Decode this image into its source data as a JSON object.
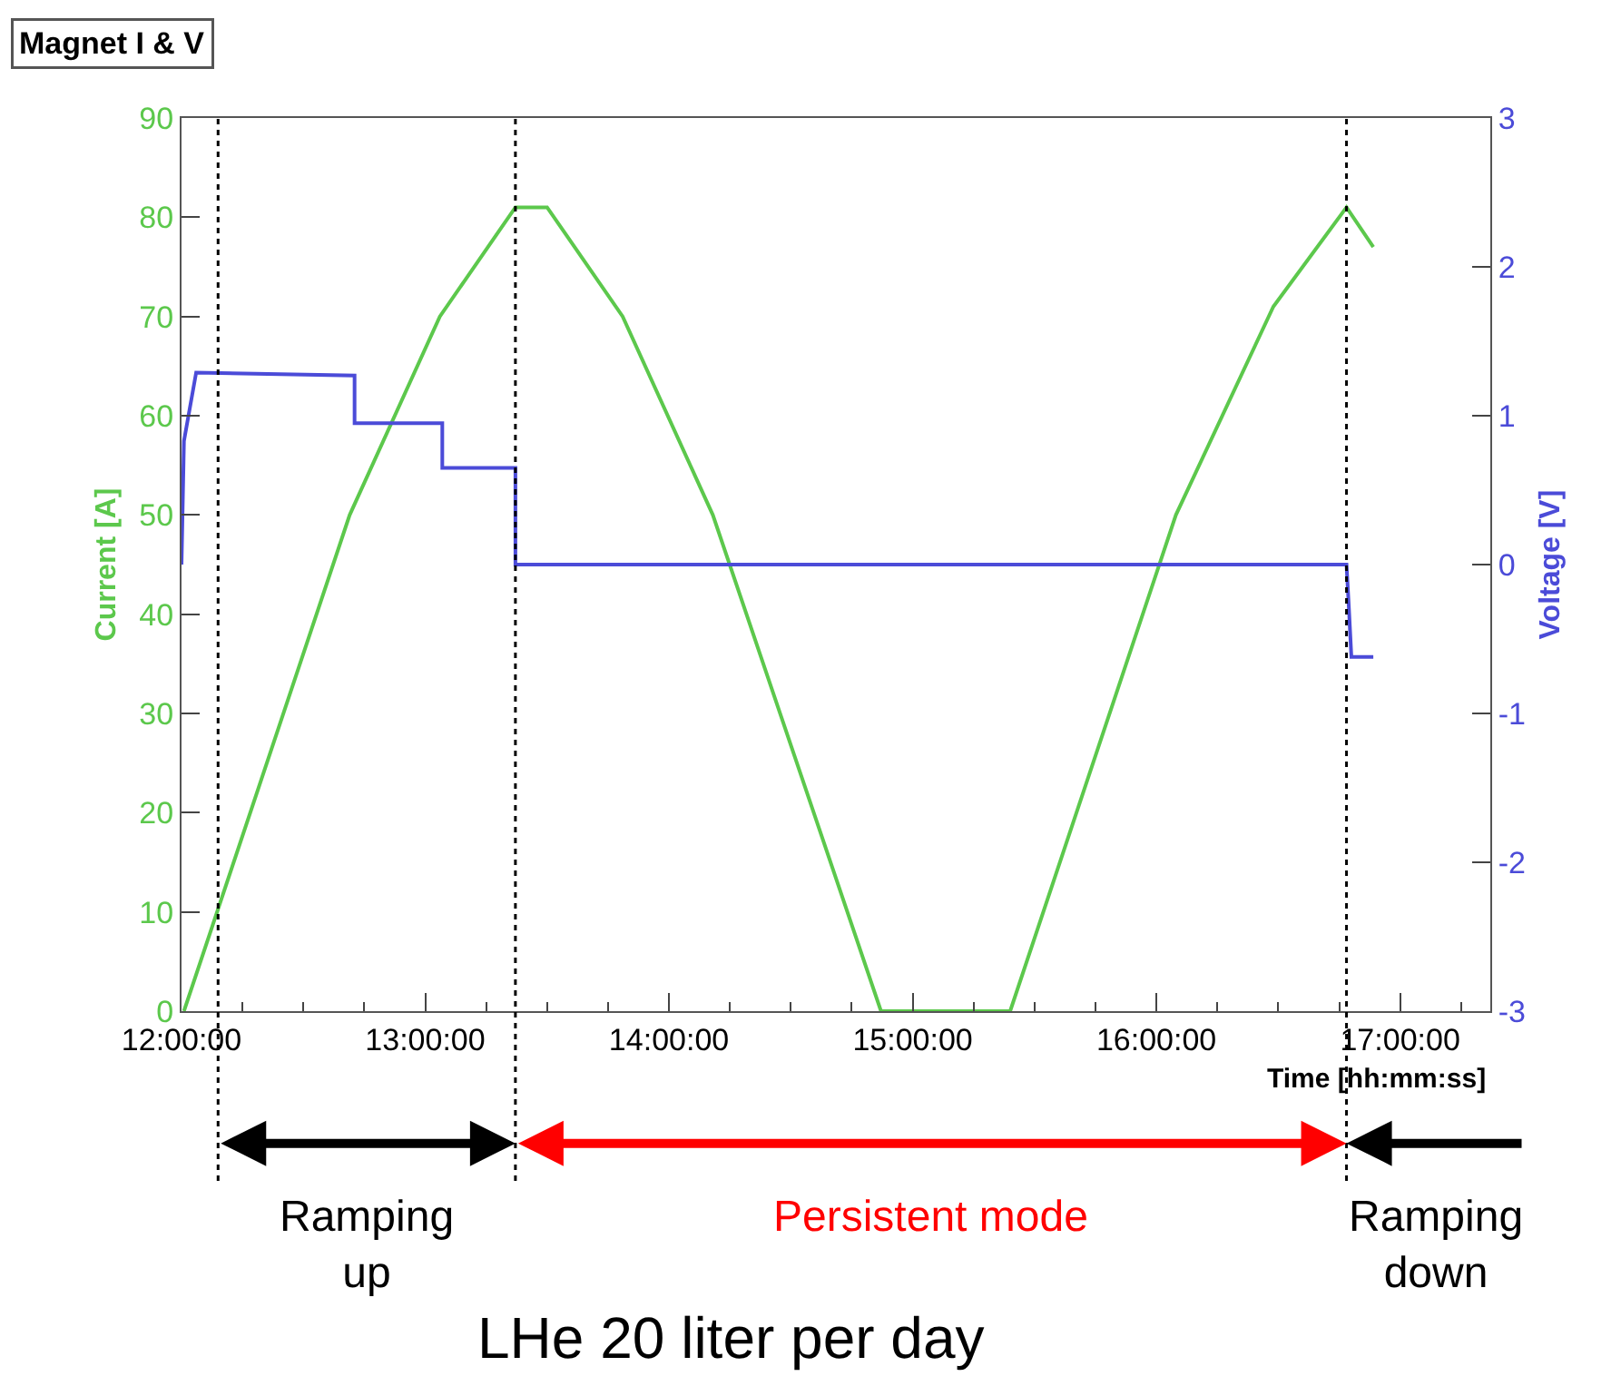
{
  "chart_data": {
    "type": "line",
    "title": "Magnet I & V",
    "xlabel": "Time [hh:mm:ss]",
    "ylabel": "Current [A]",
    "y2label": "Voltage [V]",
    "xlim": [
      12.0,
      17.37
    ],
    "xticks": [
      {
        "value": 12,
        "label": "12:00:00"
      },
      {
        "value": 13,
        "label": "13:00:00"
      },
      {
        "value": 14,
        "label": "14:00:00"
      },
      {
        "value": 15,
        "label": "15:00:00"
      },
      {
        "value": 16,
        "label": "16:00:00"
      },
      {
        "value": 17,
        "label": "17:00:00"
      }
    ],
    "ylim": [
      0,
      90
    ],
    "yticks": [
      0,
      10,
      20,
      30,
      40,
      50,
      60,
      70,
      80,
      90
    ],
    "y2lim": [
      -3,
      3
    ],
    "y2ticks": [
      -3,
      -2,
      -1,
      0,
      1,
      2,
      3
    ],
    "series": [
      {
        "color": "#5cc84c",
        "x": [
          12.01,
          12.69,
          13.06,
          13.37,
          13.5,
          13.81,
          14.18,
          14.87,
          15.4,
          16.08,
          16.48,
          16.78,
          16.89
        ],
        "values": [
          0,
          50,
          70,
          81,
          81,
          70,
          50,
          0,
          0,
          50,
          71,
          81,
          77
        ]
      },
      {
        "color": "#4b4bd8",
        "axis": "y2",
        "x": [
          12.0,
          12.01,
          12.06,
          12.71,
          12.71,
          13.07,
          13.07,
          13.37,
          13.37,
          16.78,
          16.79,
          16.8,
          16.89
        ],
        "values": [
          0,
          0.83,
          1.29,
          1.27,
          0.95,
          0.95,
          0.65,
          0.65,
          0,
          0,
          -0.3,
          -0.62,
          -0.62
        ]
      }
    ],
    "ref_lines": [
      {
        "axis": "x",
        "value": 12.15,
        "color": "#000000",
        "line_style": "dotted"
      },
      {
        "axis": "x",
        "value": 13.37,
        "color": "#000000",
        "line_style": "dotted"
      },
      {
        "axis": "x",
        "value": 16.78,
        "color": "#000000",
        "line_style": "dotted"
      }
    ],
    "annotations": [
      "Ramping up",
      "Persistent mode",
      "Ramping down",
      "LHe 20 liter per day"
    ],
    "marker": "none",
    "line_style": "solid"
  }
}
